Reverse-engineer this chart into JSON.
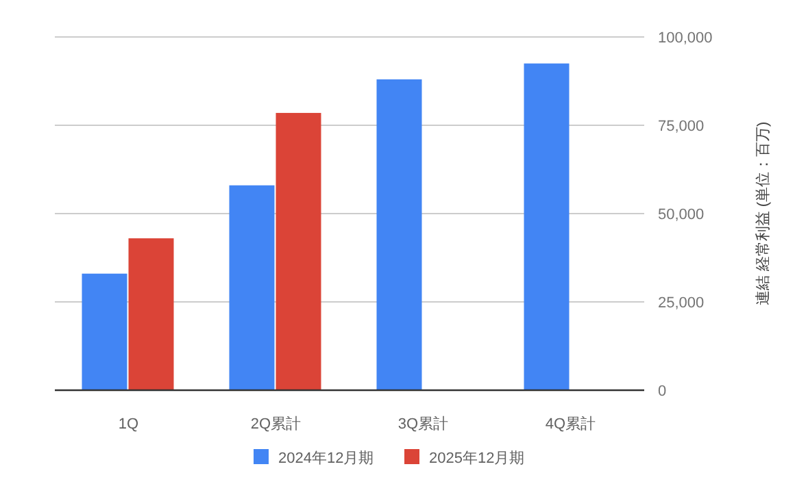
{
  "chart_data": {
    "type": "bar",
    "ylabel": "連結 経常利益 (単位：百万)",
    "categories": [
      "1Q",
      "2Q累計",
      "3Q累計",
      "4Q累計"
    ],
    "series": [
      {
        "name": "2024年12月期",
        "color": "#4285f4",
        "values": [
          33000,
          58000,
          88000,
          92500
        ]
      },
      {
        "name": "2025年12月期",
        "color": "#db4437",
        "values": [
          43000,
          78500,
          null,
          null
        ]
      }
    ],
    "ylim": [
      0,
      100000
    ],
    "yticks": [
      0,
      {
        "value": 25000,
        "label": "25,000"
      },
      {
        "value": 50000,
        "label": "50,000"
      },
      {
        "value": 75000,
        "label": "75,000"
      },
      {
        "value": 100000,
        "label": "100,000"
      }
    ],
    "grid": "y",
    "legend": "bottom"
  }
}
